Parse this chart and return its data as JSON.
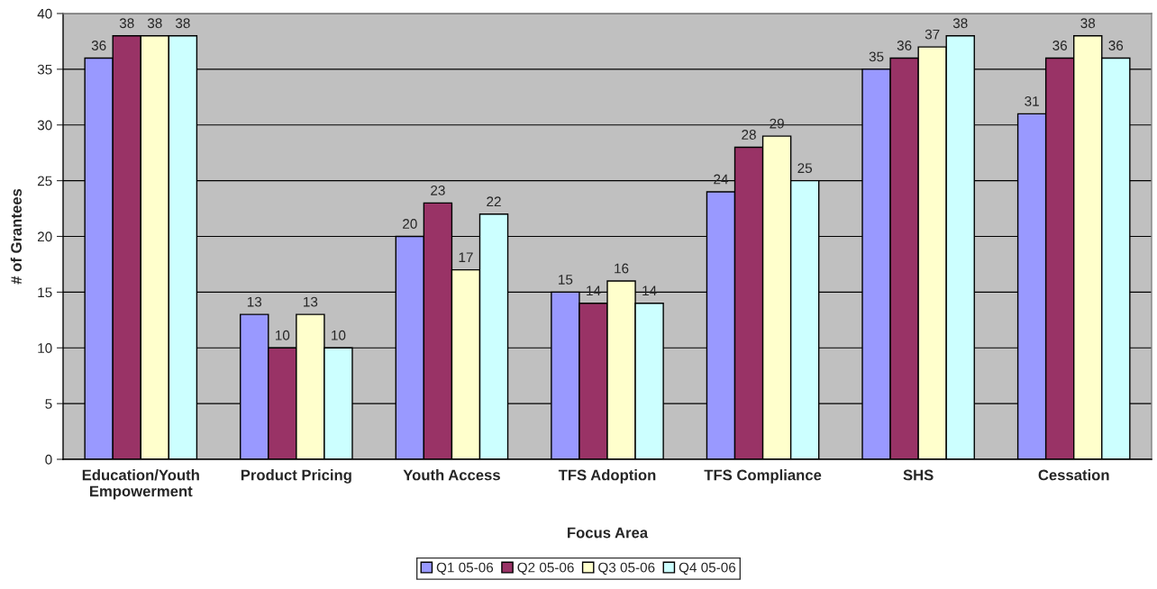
{
  "chart_data": {
    "type": "bar",
    "xlabel": "Focus Area",
    "ylabel": "# of Grantees",
    "categories": [
      "Education/Youth\nEmpowerment",
      "Product Pricing",
      "Youth Access",
      "TFS Adoption",
      "TFS Compliance",
      "SHS",
      "Cessation"
    ],
    "series": [
      {
        "name": "Q1 05-06",
        "color": "#9999ff",
        "values": [
          36,
          13,
          20,
          15,
          24,
          35,
          31
        ]
      },
      {
        "name": "Q2 05-06",
        "color": "#993366",
        "values": [
          38,
          10,
          23,
          14,
          28,
          36,
          36
        ]
      },
      {
        "name": "Q3 05-06",
        "color": "#ffffcc",
        "values": [
          38,
          13,
          17,
          16,
          29,
          37,
          38
        ]
      },
      {
        "name": "Q4 05-06",
        "color": "#ccffff",
        "values": [
          38,
          10,
          22,
          14,
          25,
          38,
          36
        ]
      }
    ],
    "ylim": [
      0,
      40
    ],
    "yticks": [
      0,
      5,
      10,
      15,
      20,
      25,
      30,
      35,
      40
    ],
    "grid": "y",
    "legend": "bottom",
    "data_labels": true
  }
}
